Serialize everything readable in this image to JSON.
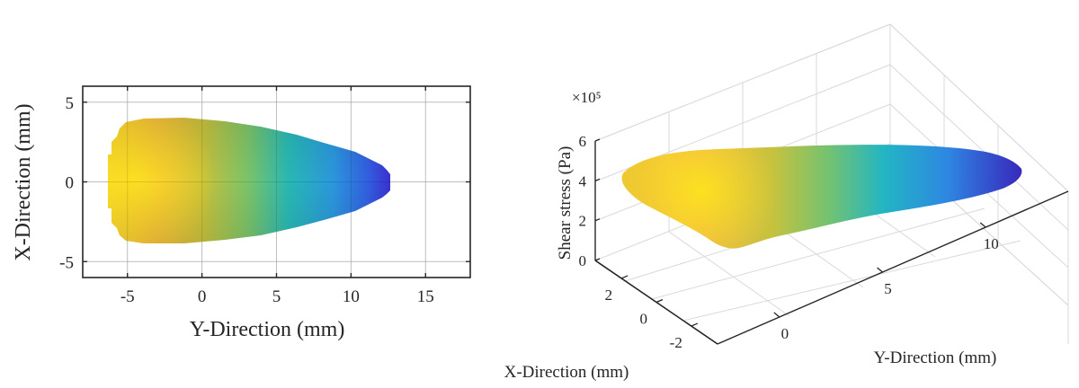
{
  "chart_data": [
    {
      "type": "heatmap",
      "xlabel": "Y-Direction (mm)",
      "ylabel": "X-Direction (mm)",
      "xlim": [
        -8,
        18
      ],
      "ylim": [
        -6,
        6
      ],
      "xticks": [
        -5,
        0,
        5,
        10,
        15
      ],
      "yticks": [
        -5,
        0,
        5
      ],
      "xtick_labels": [
        "-5",
        "0",
        "5",
        "10",
        "15"
      ],
      "ytick_labels": [
        "-5",
        "0",
        "5"
      ],
      "grid": true,
      "colormap": "parula",
      "region": {
        "shape": "truncated parabolic (bullet) footprint",
        "y_range_mm": [
          -5,
          12.7
        ],
        "max_half_width_mm": 3.9,
        "peak_at_mm": [
          -3,
          0
        ]
      }
    },
    {
      "type": "surface",
      "xlabel": "Y-Direction (mm)",
      "ylabel": "X-Direction (mm)",
      "zlabel": "Shear stress (Pa)",
      "z_exponent_label": "×10⁵",
      "xticks": [
        0,
        5,
        10
      ],
      "yticks": [
        2,
        0,
        -2
      ],
      "zticks": [
        0,
        2,
        4,
        6
      ],
      "xtick_labels": [
        "0",
        "5",
        "10"
      ],
      "ytick_labels": [
        "2",
        "0",
        "-2"
      ],
      "ztick_labels": [
        "0",
        "2",
        "4",
        "6"
      ],
      "zlim": [
        0,
        6
      ],
      "grid": true,
      "colormap": "parula",
      "stress_peak_approx_e5": 4.0,
      "stress_min_approx_e5": 3.2
    }
  ],
  "colors": {
    "yellow": "#F9D530",
    "orange": "#F2B144",
    "green": "#6DC26E",
    "teal": "#20B0C8",
    "blue": "#2E7FE0",
    "indigo": "#3A36D2",
    "axis": "#262626",
    "grid": "#d9d9d9"
  }
}
